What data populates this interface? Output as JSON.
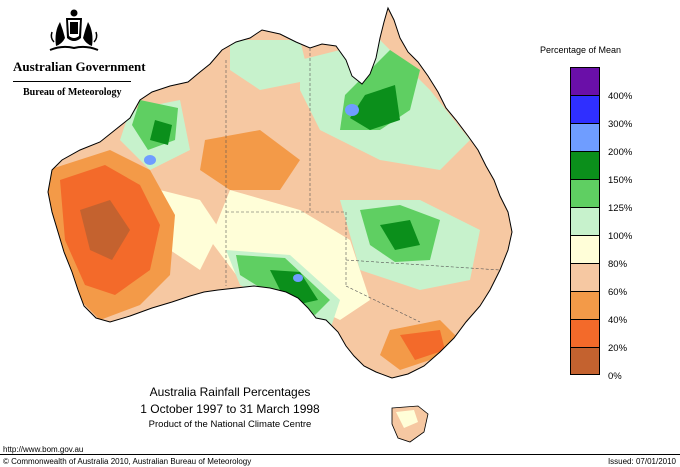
{
  "header": {
    "organisation": "Australian Government",
    "agency": "Bureau of Meteorology"
  },
  "legend": {
    "title": "Percentage of Mean",
    "items": [
      {
        "label": "400%",
        "color": "#6a0fa8"
      },
      {
        "label": "300%",
        "color": "#2f2fff"
      },
      {
        "label": "200%",
        "color": "#6f9dff"
      },
      {
        "label": "150%",
        "color": "#0b8f1b"
      },
      {
        "label": "125%",
        "color": "#5fcf62"
      },
      {
        "label": "100%",
        "color": "#c7f2cc"
      },
      {
        "label": "80%",
        "color": "#fffed8"
      },
      {
        "label": "60%",
        "color": "#f6c8a2"
      },
      {
        "label": "40%",
        "color": "#f39a48"
      },
      {
        "label": "20%",
        "color": "#f36a2a"
      },
      {
        "label": "0%",
        "color": "#c4622f"
      }
    ]
  },
  "map": {
    "title_line1": "Australia Rainfall Percentages",
    "title_line2": "1 October 1997 to 31 March 1998",
    "title_line3": "Product of the National Climate Centre"
  },
  "footer": {
    "url": "http://www.bom.gov.au",
    "copyright": "© Commonwealth of Australia 2010, Australian Bureau of Meteorology",
    "issued": "Issued: 07/01/2010"
  }
}
